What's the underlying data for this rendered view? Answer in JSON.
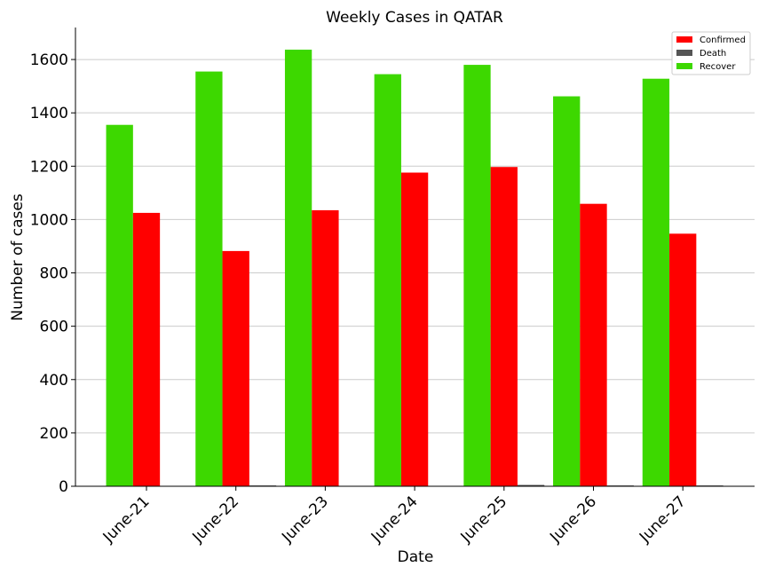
{
  "chart_data": {
    "type": "bar",
    "title": "Weekly Cases in QATAR",
    "xlabel": "Date",
    "ylabel": "Number of cases",
    "categories": [
      "June-21",
      "June-22",
      "June-23",
      "June-24",
      "June-25",
      "June-26",
      "June-27"
    ],
    "series": [
      {
        "name": "Recover",
        "color": "#3dd800",
        "values": [
          1355,
          1555,
          1637,
          1545,
          1580,
          1462,
          1528
        ]
      },
      {
        "name": "Confirmed",
        "color": "#ff0000",
        "values": [
          1025,
          882,
          1035,
          1176,
          1197,
          1059,
          947
        ]
      },
      {
        "name": "Death",
        "color": "#555555",
        "values": [
          1,
          3,
          1,
          1,
          5,
          3,
          3
        ]
      }
    ],
    "legend_order": [
      "Confirmed",
      "Death",
      "Recover"
    ],
    "ylim": [
      0,
      1720
    ],
    "yticks": [
      0,
      200,
      400,
      600,
      800,
      1000,
      1200,
      1400,
      1600
    ],
    "grid": "horizontal",
    "legend_position": "top-right"
  }
}
